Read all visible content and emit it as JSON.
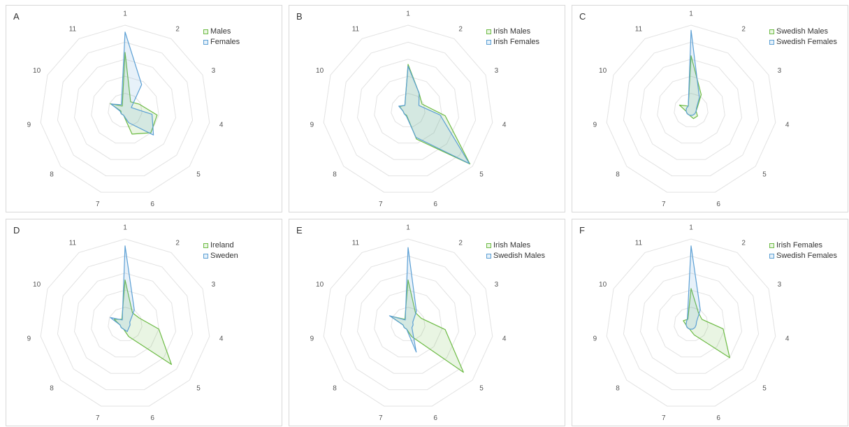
{
  "chart_data": [
    {
      "type": "radar",
      "panel": "A",
      "categories": [
        "1",
        "2",
        "3",
        "4",
        "5",
        "6",
        "7",
        "8",
        "9",
        "10",
        "11"
      ],
      "rmax": 5,
      "grid": true,
      "legend_position": "top-right",
      "series": [
        {
          "name": "Males",
          "color": "#6dbb45",
          "values": [
            3.4,
            0.6,
            0.9,
            1.9,
            2.0,
            1.45,
            0.3,
            0.3,
            0.25,
            0.95,
            0.3
          ]
        },
        {
          "name": "Females",
          "color": "#5b9fd4",
          "values": [
            4.6,
            1.8,
            0.4,
            1.6,
            2.2,
            0.75,
            0.3,
            0.3,
            0.3,
            0.9,
            0.4
          ]
        }
      ]
    },
    {
      "type": "radar",
      "panel": "B",
      "categories": [
        "1",
        "2",
        "3",
        "4",
        "5",
        "6",
        "7",
        "8",
        "9",
        "10",
        "11"
      ],
      "rmax": 5,
      "grid": true,
      "legend_position": "top-right",
      "series": [
        {
          "name": "Irish Males",
          "color": "#6dbb45",
          "values": [
            2.7,
            1.2,
            0.9,
            2.2,
            4.8,
            1.75,
            0.3,
            0.3,
            0.3,
            0.55,
            0.35
          ]
        },
        {
          "name": "Irish Females",
          "color": "#5b9fd4",
          "values": [
            2.6,
            1.2,
            0.7,
            1.9,
            4.75,
            1.65,
            0.35,
            0.3,
            0.3,
            0.6,
            0.35
          ]
        }
      ]
    },
    {
      "type": "radar",
      "panel": "C",
      "categories": [
        "1",
        "2",
        "3",
        "4",
        "5",
        "6",
        "7",
        "8",
        "9",
        "10",
        "11"
      ],
      "rmax": 5,
      "grid": true,
      "legend_position": "top-right",
      "series": [
        {
          "name": "Swedish Males",
          "color": "#6dbb45",
          "values": [
            3.2,
            1.1,
            0.4,
            0.3,
            0.5,
            0.5,
            0.3,
            0.3,
            0.3,
            0.75,
            0.3
          ]
        },
        {
          "name": "Swedish Females",
          "color": "#5b9fd4",
          "values": [
            4.7,
            0.9,
            0.35,
            0.3,
            0.3,
            0.3,
            0.3,
            0.3,
            0.3,
            0.3,
            0.3
          ]
        }
      ]
    },
    {
      "type": "radar",
      "panel": "D",
      "categories": [
        "1",
        "2",
        "3",
        "4",
        "5",
        "6",
        "7",
        "8",
        "9",
        "10",
        "11"
      ],
      "rmax": 5,
      "grid": true,
      "legend_position": "top-right",
      "series": [
        {
          "name": "Ireland",
          "color": "#6dbb45",
          "values": [
            2.6,
            0.8,
            0.9,
            2.0,
            3.6,
            0.75,
            0.3,
            0.3,
            0.3,
            0.7,
            0.35
          ]
        },
        {
          "name": "Sweden",
          "color": "#5b9fd4",
          "values": [
            4.6,
            1.0,
            0.3,
            0.3,
            0.3,
            0.45,
            0.3,
            0.3,
            0.3,
            0.95,
            0.3
          ]
        }
      ]
    },
    {
      "type": "radar",
      "panel": "E",
      "categories": [
        "1",
        "2",
        "3",
        "4",
        "5",
        "6",
        "7",
        "8",
        "9",
        "10",
        "11"
      ],
      "rmax": 5,
      "grid": true,
      "legend_position": "top-right",
      "series": [
        {
          "name": "Irish Males",
          "color": "#6dbb45",
          "values": [
            2.6,
            0.8,
            0.85,
            2.2,
            4.3,
            0.75,
            0.3,
            0.3,
            0.3,
            1.15,
            0.35
          ]
        },
        {
          "name": "Swedish Males",
          "color": "#5b9fd4",
          "values": [
            4.5,
            0.9,
            0.3,
            0.3,
            0.3,
            1.7,
            0.3,
            0.3,
            0.3,
            1.2,
            0.3
          ]
        }
      ]
    },
    {
      "type": "radar",
      "panel": "F",
      "categories": [
        "1",
        "2",
        "3",
        "4",
        "5",
        "6",
        "7",
        "8",
        "9",
        "10",
        "11"
      ],
      "rmax": 5,
      "grid": true,
      "legend_position": "top-right",
      "series": [
        {
          "name": "Irish Females",
          "color": "#6dbb45",
          "values": [
            2.1,
            0.8,
            0.7,
            1.9,
            3.0,
            0.65,
            0.3,
            0.3,
            0.3,
            0.5,
            0.35
          ]
        },
        {
          "name": "Swedish Females",
          "color": "#5b9fd4",
          "values": [
            4.6,
            1.0,
            0.35,
            0.3,
            0.3,
            0.3,
            0.3,
            0.3,
            0.3,
            0.3,
            0.4
          ]
        }
      ]
    }
  ]
}
